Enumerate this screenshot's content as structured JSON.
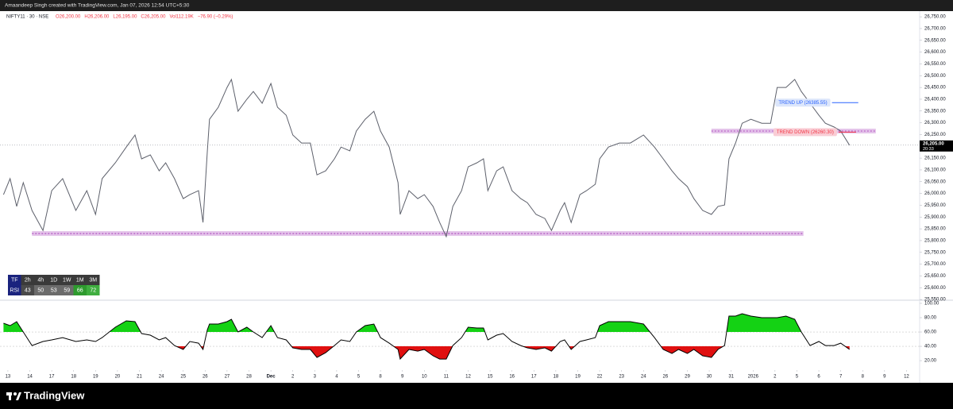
{
  "header": {
    "title": "Amaandeep Singh created with TradingView.com, Jan 07, 2026 12:54 UTC+5:30",
    "symbol": "NIFTY11 · 30 · NSE",
    "quote": [
      "O26,200.00",
      "H26,206.00",
      "L26,195.00",
      "C26,205.00",
      "Vol112.19K",
      "−76.90 (−0.29%)"
    ]
  },
  "footer": {
    "brand": "TradingView"
  },
  "chart_data": [
    {
      "type": "line",
      "color": "#5d606b",
      "xlim": [
        -0.36,
        41.6
      ],
      "ylim": [
        25547,
        26774
      ],
      "yticks": [
        {
          "value": 26750,
          "label": "26,750.00"
        },
        {
          "value": 26700,
          "label": "26,700.00"
        },
        {
          "value": 26650,
          "label": "26,650.00"
        },
        {
          "value": 26600,
          "label": "26,600.00"
        },
        {
          "value": 26550,
          "label": "26,550.00"
        },
        {
          "value": 26500,
          "label": "26,500.00"
        },
        {
          "value": 26450,
          "label": "26,450.00"
        },
        {
          "value": 26400,
          "label": "26,400.00"
        },
        {
          "value": 26350,
          "label": "26,350.00"
        },
        {
          "value": 26300,
          "label": "26,300.00"
        },
        {
          "value": 26250,
          "label": "26,250.00"
        },
        {
          "value": 26150,
          "label": "26,150.00"
        },
        {
          "value": 26100,
          "label": "26,100.00"
        },
        {
          "value": 26050,
          "label": "26,050.00"
        },
        {
          "value": 26000,
          "label": "26,000.00"
        },
        {
          "value": 25950,
          "label": "25,950.00"
        },
        {
          "value": 25900,
          "label": "25,900.00"
        },
        {
          "value": 25850,
          "label": "25,850.00"
        },
        {
          "value": 25800,
          "label": "25,800.00"
        },
        {
          "value": 25750,
          "label": "25,750.00"
        },
        {
          "value": 25700,
          "label": "25,700.00"
        },
        {
          "value": 25650,
          "label": "25,650.00"
        },
        {
          "value": 25600,
          "label": "25,600.00"
        },
        {
          "value": 25550,
          "label": "25,550.00"
        }
      ],
      "x": [
        -0.2,
        0.1,
        0.4,
        0.7,
        1.1,
        1.6,
        2.0,
        2.5,
        3.1,
        3.6,
        4.0,
        4.3,
        4.9,
        5.4,
        5.8,
        6.1,
        6.5,
        6.9,
        7.2,
        7.6,
        8.0,
        8.3,
        8.7,
        8.9,
        9.1,
        9.2,
        9.6,
        10.0,
        10.2,
        10.5,
        10.9,
        11.2,
        11.6,
        12.0,
        12.3,
        12.7,
        13.0,
        13.4,
        13.8,
        14.1,
        14.5,
        14.9,
        15.2,
        15.6,
        15.9,
        16.3,
        16.7,
        17.0,
        17.4,
        17.8,
        17.9,
        18.3,
        18.7,
        19.0,
        19.4,
        19.7,
        20.0,
        20.3,
        20.7,
        21.0,
        21.4,
        21.7,
        21.9,
        22.3,
        22.6,
        23.0,
        23.4,
        23.7,
        24.1,
        24.5,
        24.8,
        25.2,
        25.4,
        25.7,
        26.1,
        26.4,
        26.8,
        27.0,
        27.4,
        27.9,
        28.4,
        29.0,
        29.5,
        29.9,
        30.3,
        30.6,
        31.0,
        31.3,
        31.7,
        32.1,
        32.4,
        32.7,
        32.9,
        33.2,
        33.5,
        33.9,
        34.4,
        34.8,
        35.1,
        35.5,
        35.9,
        36.2,
        36.6,
        37.0,
        37.3,
        37.7,
        38.0,
        38.4
      ],
      "values": [
        25995,
        26063,
        25945,
        26046,
        25928,
        25843,
        26012,
        26063,
        25928,
        26012,
        25911,
        26063,
        26130,
        26197,
        26248,
        26147,
        26164,
        26096,
        26130,
        26063,
        25978,
        25995,
        26012,
        25877,
        26181,
        26315,
        26366,
        26450,
        26484,
        26349,
        26400,
        26433,
        26383,
        26467,
        26366,
        26332,
        26248,
        26214,
        26214,
        26079,
        26096,
        26147,
        26197,
        26181,
        26265,
        26315,
        26349,
        26265,
        26197,
        26046,
        25911,
        26012,
        25978,
        25995,
        25945,
        25877,
        25817,
        25945,
        26012,
        26113,
        26130,
        26147,
        26012,
        26096,
        26113,
        26012,
        25978,
        25961,
        25911,
        25894,
        25843,
        25928,
        25961,
        25877,
        25995,
        26012,
        26039,
        26147,
        26197,
        26214,
        26214,
        26248,
        26197,
        26147,
        26096,
        26063,
        26029,
        25978,
        25928,
        25911,
        25945,
        25951,
        26147,
        26214,
        26298,
        26315,
        26298,
        26298,
        26450,
        26450,
        26484,
        26433,
        26383,
        26332,
        26298,
        26282,
        26265,
        26205
      ],
      "last_price": {
        "value": 26205,
        "label": "26,205.00"
      },
      "countdown": "20:33",
      "levels": [
        {
          "value": 25830,
          "from": 1.1,
          "to": 36.3,
          "color": "#ce93d8"
        },
        {
          "value": 26265,
          "from": 32.1,
          "to": 39.6,
          "color": "#ce93d8"
        }
      ],
      "trend_lines": [
        {
          "label": "TREND UP (26385.55)",
          "value": 26385.55,
          "from": 37.6,
          "to": 38.8,
          "color": "#2962ff",
          "background": "#dce6fb"
        },
        {
          "label": "TREND DOWN (26260.30)",
          "value": 26260.3,
          "from": 37.9,
          "to": 38.7,
          "color": "#f23645",
          "background": "#f9cdd5"
        }
      ],
      "table": {
        "headers": [
          "TF",
          "2h",
          "4h",
          "1D",
          "1W",
          "1M",
          "3M"
        ],
        "row_label": "RSI",
        "values": [
          43,
          50,
          53,
          59,
          66,
          72
        ],
        "colors": [
          "#4a4a4a",
          "#6b6b6b",
          "#6b6b6b",
          "#6b6b6b",
          "#2e9a2e",
          "#3fae3f"
        ],
        "label_color": "#1a237e",
        "header_color": "#3a3a3a"
      }
    },
    {
      "type": "rsi",
      "color": "#000000",
      "overbought": 60,
      "oversold": 40,
      "overbought_color": "#14d214",
      "oversold_color": "#e01010",
      "xlim": [
        -0.36,
        41.6
      ],
      "ylim": [
        9,
        103.3
      ],
      "yticks": [
        {
          "value": 100,
          "label": "100.00"
        },
        {
          "value": 80,
          "label": "80.00"
        },
        {
          "value": 60,
          "label": "60.00"
        },
        {
          "value": 40,
          "label": "40.00"
        },
        {
          "value": 20,
          "label": "20.00"
        }
      ],
      "xticks": [
        {
          "value": 0,
          "label": "13"
        },
        {
          "value": 1,
          "label": "14"
        },
        {
          "value": 2,
          "label": "17"
        },
        {
          "value": 3,
          "label": "18"
        },
        {
          "value": 4,
          "label": "19"
        },
        {
          "value": 5,
          "label": "20"
        },
        {
          "value": 6,
          "label": "21"
        },
        {
          "value": 7,
          "label": "24"
        },
        {
          "value": 8,
          "label": "25"
        },
        {
          "value": 9,
          "label": "26"
        },
        {
          "value": 10,
          "label": "27"
        },
        {
          "value": 11,
          "label": "28"
        },
        {
          "value": 12,
          "label": "Dec"
        },
        {
          "value": 13,
          "label": "2"
        },
        {
          "value": 14,
          "label": "3"
        },
        {
          "value": 15,
          "label": "4"
        },
        {
          "value": 16,
          "label": "5"
        },
        {
          "value": 17,
          "label": "8"
        },
        {
          "value": 18,
          "label": "9"
        },
        {
          "value": 19,
          "label": "10"
        },
        {
          "value": 20,
          "label": "11"
        },
        {
          "value": 21,
          "label": "12"
        },
        {
          "value": 22,
          "label": "15"
        },
        {
          "value": 23,
          "label": "16"
        },
        {
          "value": 24,
          "label": "17"
        },
        {
          "value": 25,
          "label": "18"
        },
        {
          "value": 26,
          "label": "19"
        },
        {
          "value": 27,
          "label": "22"
        },
        {
          "value": 28,
          "label": "23"
        },
        {
          "value": 29,
          "label": "24"
        },
        {
          "value": 30,
          "label": "26"
        },
        {
          "value": 31,
          "label": "29"
        },
        {
          "value": 32,
          "label": "30"
        },
        {
          "value": 33,
          "label": "31"
        },
        {
          "value": 34,
          "label": "2026"
        },
        {
          "value": 35,
          "label": "2"
        },
        {
          "value": 36,
          "label": "5"
        },
        {
          "value": 37,
          "label": "6"
        },
        {
          "value": 38,
          "label": "7"
        },
        {
          "value": 39,
          "label": "8"
        },
        {
          "value": 40,
          "label": "9"
        },
        {
          "value": 41,
          "label": "12"
        }
      ],
      "x": [
        -0.2,
        0.1,
        0.4,
        0.7,
        1.1,
        1.6,
        2.0,
        2.5,
        3.1,
        3.6,
        4.0,
        4.3,
        4.9,
        5.4,
        5.8,
        6.1,
        6.5,
        6.9,
        7.2,
        7.6,
        8.0,
        8.3,
        8.7,
        8.9,
        9.1,
        9.2,
        9.6,
        10.0,
        10.2,
        10.5,
        10.9,
        11.2,
        11.6,
        12.0,
        12.3,
        12.7,
        13.0,
        13.4,
        13.8,
        14.1,
        14.5,
        14.9,
        15.2,
        15.6,
        15.9,
        16.3,
        16.7,
        17.0,
        17.4,
        17.8,
        17.9,
        18.3,
        18.7,
        19.0,
        19.4,
        19.7,
        20.0,
        20.3,
        20.7,
        21.0,
        21.4,
        21.7,
        21.9,
        22.3,
        22.6,
        23.0,
        23.4,
        23.7,
        24.1,
        24.5,
        24.8,
        25.2,
        25.4,
        25.7,
        26.1,
        26.4,
        26.8,
        27.0,
        27.4,
        27.9,
        28.4,
        29.0,
        29.5,
        29.9,
        30.3,
        30.6,
        31.0,
        31.3,
        31.7,
        32.1,
        32.4,
        32.7,
        32.9,
        33.2,
        33.5,
        33.9,
        34.4,
        34.8,
        35.1,
        35.5,
        35.9,
        36.2,
        36.6,
        37.0,
        37.3,
        37.7,
        38.0,
        38.4
      ],
      "values": [
        72.2,
        68.9,
        74.4,
        60.0,
        41.1,
        46.7,
        48.9,
        52.2,
        46.7,
        48.9,
        46.7,
        52.2,
        66.7,
        75.6,
        74.4,
        57.8,
        55.6,
        48.9,
        52.2,
        41.1,
        35.6,
        46.7,
        44.4,
        35.6,
        63.3,
        71.1,
        71.1,
        74.4,
        77.8,
        60.0,
        66.7,
        60.0,
        52.2,
        68.9,
        52.2,
        48.9,
        37.8,
        35.6,
        35.6,
        24.4,
        31.1,
        41.1,
        48.9,
        46.7,
        60.0,
        68.9,
        71.1,
        52.2,
        44.4,
        35.6,
        22.2,
        35.6,
        33.3,
        35.6,
        26.7,
        22.2,
        22.2,
        41.1,
        52.2,
        66.7,
        65.6,
        65.6,
        48.9,
        55.6,
        57.8,
        46.7,
        41.1,
        37.8,
        35.6,
        37.8,
        33.3,
        46.7,
        48.9,
        35.6,
        46.7,
        48.9,
        52.2,
        68.9,
        74.4,
        74.4,
        74.4,
        71.1,
        52.2,
        35.6,
        30.0,
        35.6,
        30.0,
        35.6,
        26.7,
        24.4,
        35.6,
        41.1,
        82.2,
        82.2,
        85.6,
        82.2,
        80.0,
        80.0,
        80.0,
        82.2,
        77.8,
        60.0,
        41.1,
        46.7,
        41.1,
        41.1,
        44.4,
        35.6
      ]
    }
  ]
}
